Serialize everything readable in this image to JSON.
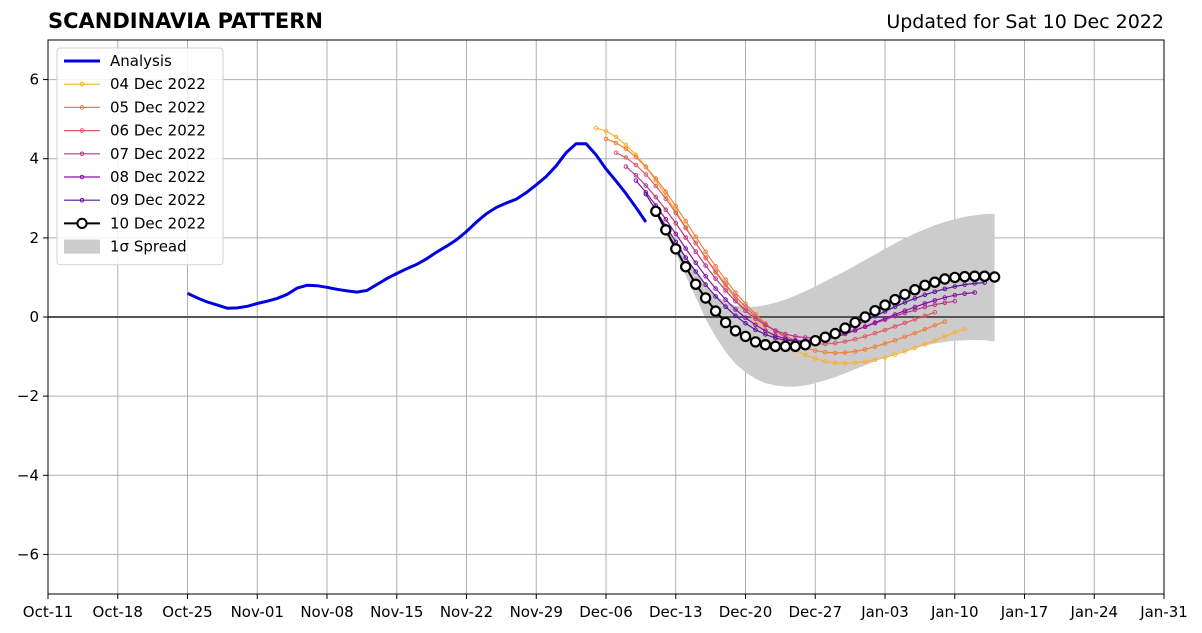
{
  "chart_data": {
    "type": "line",
    "title": "SCANDINAVIA PATTERN",
    "subtitle": "Updated for Sat 10 Dec 2022",
    "xlabel": "",
    "ylabel": "",
    "xlim": [
      "2022-10-11",
      "2023-01-31"
    ],
    "ylim": [
      -7,
      7
    ],
    "xticks": [
      "Oct-11",
      "Oct-18",
      "Oct-25",
      "Nov-01",
      "Nov-08",
      "Nov-15",
      "Nov-22",
      "Nov-29",
      "Dec-06",
      "Dec-13",
      "Dec-20",
      "Dec-27",
      "Jan-03",
      "Jan-10",
      "Jan-17",
      "Jan-24",
      "Jan-31"
    ],
    "yticks": [
      -6,
      -4,
      -2,
      0,
      2,
      4,
      6
    ],
    "ytick_labels": [
      "−6",
      "−4",
      "−2",
      "0",
      "2",
      "4",
      "6"
    ],
    "grid": true,
    "legend_position": "top-left",
    "colors": {
      "analysis": "#0000e0",
      "spread": "#cccccc",
      "zero_line": "#555555",
      "grid": "#b0b0b0"
    },
    "analysis": {
      "name": "Analysis",
      "x": [
        "2022-10-25",
        "2022-10-26",
        "2022-10-27",
        "2022-10-28",
        "2022-10-29",
        "2022-10-30",
        "2022-10-31",
        "2022-11-01",
        "2022-11-02",
        "2022-11-03",
        "2022-11-04",
        "2022-11-05",
        "2022-11-06",
        "2022-11-07",
        "2022-11-08",
        "2022-11-09",
        "2022-11-10",
        "2022-11-11",
        "2022-11-12",
        "2022-11-13",
        "2022-11-14",
        "2022-11-15",
        "2022-11-16",
        "2022-11-17",
        "2022-11-18",
        "2022-11-19",
        "2022-11-20",
        "2022-11-21",
        "2022-11-22",
        "2022-11-23",
        "2022-11-24",
        "2022-11-25",
        "2022-11-26",
        "2022-11-27",
        "2022-11-28",
        "2022-11-29",
        "2022-11-30",
        "2022-12-01",
        "2022-12-02",
        "2022-12-03",
        "2022-12-04",
        "2022-12-05",
        "2022-12-06",
        "2022-12-07",
        "2022-12-08",
        "2022-12-09",
        "2022-12-10"
      ],
      "y": [
        0.6,
        0.48,
        0.38,
        0.3,
        0.22,
        0.23,
        0.27,
        0.34,
        0.4,
        0.47,
        0.57,
        0.73,
        0.8,
        0.79,
        0.75,
        0.7,
        0.66,
        0.63,
        0.67,
        0.82,
        0.97,
        1.1,
        1.22,
        1.33,
        1.47,
        1.64,
        1.79,
        1.95,
        2.16,
        2.4,
        2.61,
        2.77,
        2.88,
        2.98,
        3.14,
        3.34,
        3.55,
        3.82,
        4.15,
        4.38,
        4.38,
        4.1,
        3.74,
        3.44,
        3.12,
        2.77,
        2.4
      ]
    },
    "series": [
      {
        "name": "04 Dec 2022",
        "color": "#fbb234",
        "start": "2022-12-05",
        "y": [
          4.77,
          4.7,
          4.55,
          4.35,
          4.1,
          3.8,
          3.45,
          3.07,
          2.67,
          2.27,
          1.87,
          1.49,
          1.12,
          0.78,
          0.46,
          0.17,
          -0.09,
          -0.32,
          -0.52,
          -0.69,
          -0.84,
          -0.96,
          -1.05,
          -1.12,
          -1.16,
          -1.17,
          -1.16,
          -1.13,
          -1.08,
          -1.02,
          -0.95,
          -0.87,
          -0.78,
          -0.69,
          -0.59,
          -0.49,
          -0.39,
          -0.3
        ]
      },
      {
        "name": "05 Dec 2022",
        "color": "#f07f3c",
        "start": "2022-12-06",
        "y": [
          4.5,
          4.4,
          4.25,
          4.04,
          3.79,
          3.5,
          3.17,
          2.8,
          2.42,
          2.03,
          1.65,
          1.28,
          0.94,
          0.62,
          0.33,
          0.07,
          -0.16,
          -0.36,
          -0.53,
          -0.67,
          -0.78,
          -0.85,
          -0.89,
          -0.91,
          -0.9,
          -0.87,
          -0.82,
          -0.75,
          -0.67,
          -0.59,
          -0.5,
          -0.41,
          -0.31,
          -0.21,
          -0.12
        ]
      },
      {
        "name": "06 Dec 2022",
        "color": "#dd5b6a",
        "start": "2022-12-07",
        "y": [
          4.15,
          4.03,
          3.84,
          3.6,
          3.31,
          2.99,
          2.63,
          2.25,
          1.87,
          1.5,
          1.15,
          0.82,
          0.52,
          0.25,
          0.01,
          -0.19,
          -0.36,
          -0.49,
          -0.59,
          -0.65,
          -0.68,
          -0.68,
          -0.66,
          -0.62,
          -0.56,
          -0.49,
          -0.41,
          -0.33,
          -0.24,
          -0.15,
          -0.06,
          0.03,
          0.12
        ]
      },
      {
        "name": "07 Dec 2022",
        "color": "#b8388c",
        "start": "2022-12-08",
        "y": [
          3.8,
          3.58,
          3.32,
          3.03,
          2.71,
          2.37,
          2.01,
          1.65,
          1.3,
          0.97,
          0.67,
          0.4,
          0.16,
          -0.04,
          -0.21,
          -0.34,
          -0.43,
          -0.49,
          -0.52,
          -0.52,
          -0.5,
          -0.46,
          -0.4,
          -0.33,
          -0.25,
          -0.16,
          -0.07,
          0.02,
          0.1,
          0.18,
          0.25,
          0.31,
          0.36,
          0.4
        ]
      },
      {
        "name": "08 Dec 2022",
        "color": "#8a11a8",
        "start": "2022-12-09",
        "y": [
          3.45,
          3.15,
          2.82,
          2.47,
          2.1,
          1.73,
          1.37,
          1.03,
          0.72,
          0.44,
          0.19,
          -0.02,
          -0.2,
          -0.35,
          -0.47,
          -0.55,
          -0.6,
          -0.62,
          -0.61,
          -0.57,
          -0.51,
          -0.43,
          -0.34,
          -0.24,
          -0.14,
          -0.04,
          0.06,
          0.16,
          0.25,
          0.34,
          0.42,
          0.49,
          0.55,
          0.59,
          0.62
        ]
      },
      {
        "name": "09 Dec 2022",
        "color": "#5a1599",
        "start": "2022-12-10",
        "y": [
          3.1,
          2.7,
          2.3,
          1.9,
          1.5,
          1.15,
          0.82,
          0.52,
          0.26,
          0.03,
          -0.16,
          -0.32,
          -0.44,
          -0.53,
          -0.59,
          -0.61,
          -0.6,
          -0.56,
          -0.5,
          -0.42,
          -0.32,
          -0.21,
          -0.1,
          0.02,
          0.14,
          0.26,
          0.37,
          0.47,
          0.56,
          0.64,
          0.71,
          0.77,
          0.82,
          0.85,
          0.87
        ]
      },
      {
        "name": "10 Dec 2022",
        "color": "#000000",
        "start": "2022-12-11",
        "marker": "large-open-circle",
        "y": [
          2.67,
          2.2,
          1.72,
          1.27,
          0.83,
          0.48,
          0.15,
          -0.14,
          -0.35,
          -0.49,
          -0.63,
          -0.7,
          -0.74,
          -0.74,
          -0.74,
          -0.7,
          -0.6,
          -0.51,
          -0.42,
          -0.28,
          -0.14,
          0.0,
          0.16,
          0.3,
          0.44,
          0.57,
          0.69,
          0.8,
          0.88,
          0.96,
          1.0,
          1.02,
          1.03,
          1.03,
          1.01
        ]
      }
    ],
    "spread": {
      "name": "1σ Spread",
      "start": "2022-12-11",
      "upper": [
        2.7,
        2.3,
        1.9,
        1.5,
        1.15,
        0.82,
        0.55,
        0.38,
        0.29,
        0.25,
        0.26,
        0.3,
        0.36,
        0.44,
        0.54,
        0.65,
        0.77,
        0.9,
        1.03,
        1.16,
        1.3,
        1.44,
        1.58,
        1.72,
        1.86,
        1.99,
        2.11,
        2.22,
        2.32,
        2.4,
        2.47,
        2.53,
        2.57,
        2.6,
        2.61
      ],
      "lower": [
        2.6,
        2.1,
        1.6,
        1.05,
        0.5,
        -0.05,
        -0.5,
        -0.88,
        -1.18,
        -1.4,
        -1.56,
        -1.67,
        -1.73,
        -1.76,
        -1.76,
        -1.73,
        -1.67,
        -1.6,
        -1.52,
        -1.42,
        -1.32,
        -1.22,
        -1.12,
        -1.02,
        -0.93,
        -0.85,
        -0.78,
        -0.72,
        -0.67,
        -0.63,
        -0.6,
        -0.59,
        -0.58,
        -0.59,
        -0.62
      ]
    }
  }
}
